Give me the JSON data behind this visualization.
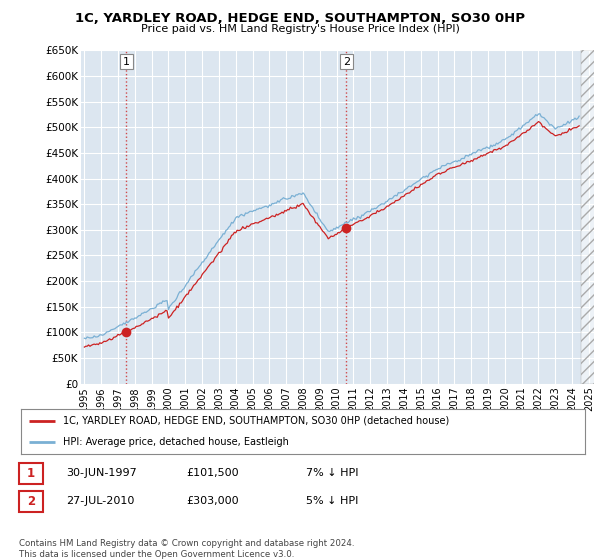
{
  "title": "1C, YARDLEY ROAD, HEDGE END, SOUTHAMPTON, SO30 0HP",
  "subtitle": "Price paid vs. HM Land Registry's House Price Index (HPI)",
  "ylabel_ticks": [
    "£0",
    "£50K",
    "£100K",
    "£150K",
    "£200K",
    "£250K",
    "£300K",
    "£350K",
    "£400K",
    "£450K",
    "£500K",
    "£550K",
    "£600K",
    "£650K"
  ],
  "ytick_values": [
    0,
    50000,
    100000,
    150000,
    200000,
    250000,
    300000,
    350000,
    400000,
    450000,
    500000,
    550000,
    600000,
    650000
  ],
  "ylim": [
    0,
    650000
  ],
  "background_color": "#ffffff",
  "plot_bg_color": "#dce6f0",
  "grid_color": "#ffffff",
  "hpi_line_color": "#7ab0d4",
  "price_line_color": "#cc2222",
  "sale1_x": 1997.5,
  "sale1_y": 101500,
  "sale2_x": 2010.58,
  "sale2_y": 303000,
  "legend_line1": "1C, YARDLEY ROAD, HEDGE END, SOUTHAMPTON, SO30 0HP (detached house)",
  "legend_line2": "HPI: Average price, detached house, Eastleigh",
  "table_row1": [
    "1",
    "30-JUN-1997",
    "£101,500",
    "7% ↓ HPI"
  ],
  "table_row2": [
    "2",
    "27-JUL-2010",
    "£303,000",
    "5% ↓ HPI"
  ],
  "copyright_text": "Contains HM Land Registry data © Crown copyright and database right 2024.\nThis data is licensed under the Open Government Licence v3.0.",
  "xmin": 1995,
  "xmax": 2025,
  "data_end_x": 2024.5,
  "hatch_start": 2024.5
}
